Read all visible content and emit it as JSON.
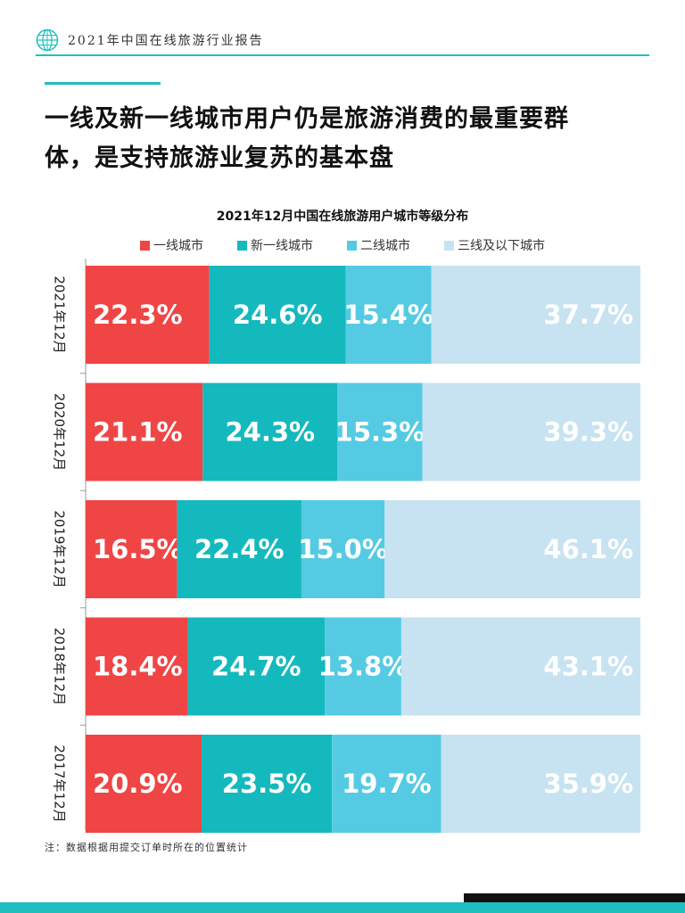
{
  "header": {
    "report_title": "2021年中国在线旅游行业报告"
  },
  "headline": {
    "line1": "一线及新一线城市用户仍是旅游消费的最重要群",
    "line2": "体，是支持旅游业复苏的基本盘"
  },
  "colors": {
    "accent": "#1fbfc0",
    "series": [
      "#f04545",
      "#14b9be",
      "#55cbe3",
      "#c7e3f1"
    ]
  },
  "chart_data": {
    "type": "bar",
    "orientation": "horizontal",
    "stacked": true,
    "percent": true,
    "title": "2021年12月中国在线旅游用户城市等级分布",
    "legend_position": "top",
    "categories": [
      "2021年12月",
      "2020年12月",
      "2019年12月",
      "2018年12月",
      "2017年12月"
    ],
    "series": [
      {
        "name": "一线城市",
        "values": [
          22.3,
          21.1,
          16.5,
          18.4,
          20.9
        ],
        "labels": [
          "22.3%",
          "21.1%",
          "16.5%",
          "18.4%",
          "20.9%"
        ]
      },
      {
        "name": "新一线城市",
        "values": [
          24.6,
          24.3,
          22.4,
          24.7,
          23.5
        ],
        "labels": [
          "24.6%",
          "24.3%",
          "22.4%",
          "24.7%",
          "23.5%"
        ]
      },
      {
        "name": "二线城市",
        "values": [
          15.4,
          15.3,
          15.0,
          13.8,
          19.7
        ],
        "labels": [
          "15.4%",
          "15.3%",
          "15.0%",
          "13.8%",
          "19.7%"
        ]
      },
      {
        "name": "三线及以下城市",
        "values": [
          37.7,
          39.3,
          46.1,
          43.1,
          35.9
        ],
        "labels": [
          "37.7%",
          "39.3%",
          "46.1%",
          "43.1%",
          "35.9%"
        ]
      }
    ]
  },
  "note": "注：数据根据用提交订单时所在的位置统计"
}
